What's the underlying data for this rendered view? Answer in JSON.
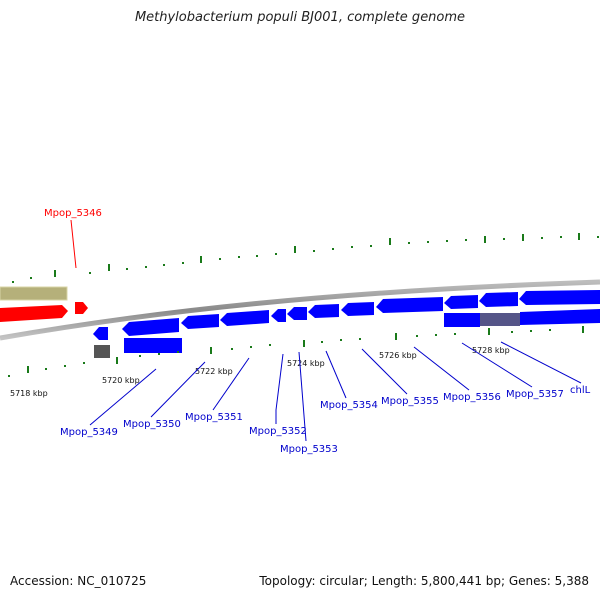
{
  "title": "Methylobacterium populi BJ001, complete genome",
  "footer": {
    "accession": "Accession: NC_010725",
    "summary": "Topology: circular; Length: 5,800,441 bp; Genes: 5,388"
  },
  "colors": {
    "forward_gene": "#ff0000",
    "reverse_gene": "#0000ff",
    "other_feature": "#b5b07a",
    "pseudo_feature": "#555555",
    "tick": "#1a7a1a",
    "backbone": "#8c8c8c"
  },
  "ticks": [
    {
      "label": "5718 kbp"
    },
    {
      "label": "5720 kbp"
    },
    {
      "label": "5722 kbp"
    },
    {
      "label": "5724 kbp"
    },
    {
      "label": "5726 kbp"
    },
    {
      "label": "5728 kbp"
    }
  ],
  "gene_labels": {
    "forward": [
      "Mpop_5346"
    ],
    "reverse": [
      "Mpop_5349",
      "Mpop_5350",
      "Mpop_5351",
      "Mpop_5352",
      "Mpop_5353",
      "Mpop_5354",
      "Mpop_5355",
      "Mpop_5356",
      "Mpop_5357",
      "chlL"
    ]
  }
}
